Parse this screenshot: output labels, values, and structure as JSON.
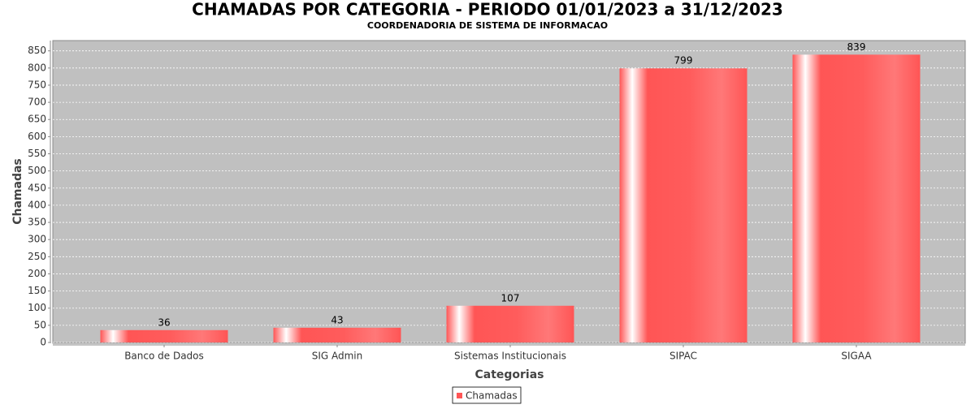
{
  "chart_data": {
    "type": "bar",
    "title": "CHAMADAS POR CATEGORIA - PERIODO 01/01/2023 a 31/12/2023",
    "subtitle": "COORDENADORIA DE SISTEMA DE INFORMACAO",
    "x_label": "Categorias",
    "y_label": "Chamadas",
    "categories": [
      "Banco de Dados",
      "SIG Admin",
      "Sistemas Institucionais",
      "SIPAC",
      "SIGAA"
    ],
    "series": [
      {
        "name": "Chamadas",
        "color": "#ff5555",
        "values": [
          36,
          43,
          107,
          799,
          839
        ]
      }
    ],
    "ylim": [
      0,
      880
    ],
    "yticks": [
      0,
      50,
      100,
      150,
      200,
      250,
      300,
      350,
      400,
      450,
      500,
      550,
      600,
      650,
      700,
      750,
      800,
      850
    ],
    "grid": true,
    "legend": "bottom"
  }
}
